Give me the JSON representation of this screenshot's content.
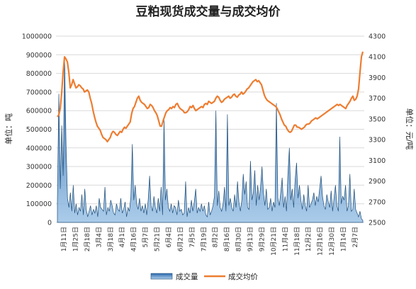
{
  "chart_data": {
    "type": "area+line",
    "title": "豆粕现货成交量与成交均价",
    "y_left": {
      "label": "单位：吨",
      "min": 0,
      "max": 1000000,
      "ticks": [
        "0",
        "100000",
        "200000",
        "300000",
        "400000",
        "500000",
        "600000",
        "700000",
        "800000",
        "900000",
        "1000000"
      ]
    },
    "y_right": {
      "label": "单位：元/吨",
      "min": 2500,
      "max": 4300,
      "ticks": [
        "2500",
        "2700",
        "2900",
        "3100",
        "3300",
        "3500",
        "3700",
        "3900",
        "4100",
        "4300"
      ]
    },
    "x_ticks": [
      "1月11日",
      "1月25日",
      "2月18日",
      "3月4日",
      "3月18日",
      "4月1日",
      "4月16日",
      "5月7日",
      "5月21日",
      "6月4日",
      "6月21日",
      "7月5日",
      "7月19日",
      "8月2日",
      "8月16日",
      "8月30日",
      "9月13日",
      "9月29日",
      "10月21日",
      "11月4日",
      "11月18日",
      "12月2日",
      "12月16日",
      "12月30日",
      "1月14日",
      "2月7日"
    ],
    "grid": true,
    "legend_position": "bottom",
    "series": [
      {
        "name": "成交量",
        "axis": "left",
        "kind": "area",
        "color": "#2e75b6",
        "values": [
          120000,
          690000,
          180000,
          520000,
          250000,
          880000,
          420000,
          130000,
          80000,
          160000,
          60000,
          200000,
          50000,
          100000,
          40000,
          80000,
          60000,
          150000,
          40000,
          180000,
          70000,
          30000,
          60000,
          90000,
          40000,
          70000,
          50000,
          90000,
          30000,
          130000,
          80000,
          70000,
          60000,
          190000,
          40000,
          80000,
          60000,
          120000,
          90000,
          50000,
          40000,
          100000,
          70000,
          60000,
          130000,
          50000,
          70000,
          110000,
          30000,
          80000,
          60000,
          140000,
          420000,
          120000,
          200000,
          100000,
          70000,
          130000,
          60000,
          90000,
          50000,
          100000,
          40000,
          120000,
          250000,
          90000,
          60000,
          140000,
          80000,
          50000,
          130000,
          60000,
          190000,
          40000,
          550000,
          120000,
          180000,
          80000,
          60000,
          100000,
          50000,
          90000,
          80000,
          40000,
          120000,
          60000,
          70000,
          40000,
          50000,
          220000,
          30000,
          80000,
          50000,
          120000,
          60000,
          110000,
          180000,
          50000,
          80000,
          60000,
          100000,
          60000,
          90000,
          40000,
          30000,
          110000,
          40000,
          60000,
          90000,
          140000,
          600000,
          90000,
          170000,
          80000,
          60000,
          100000,
          190000,
          60000,
          580000,
          90000,
          130000,
          80000,
          60000,
          150000,
          80000,
          220000,
          110000,
          60000,
          120000,
          260000,
          150000,
          220000,
          80000,
          70000,
          330000,
          120000,
          160000,
          280000,
          90000,
          200000,
          120000,
          190000,
          300000,
          160000,
          90000,
          180000,
          70000,
          80000,
          130000,
          60000,
          110000,
          80000,
          640000,
          130000,
          90000,
          160000,
          240000,
          80000,
          140000,
          60000,
          260000,
          400000,
          120000,
          180000,
          80000,
          230000,
          320000,
          130000,
          200000,
          120000,
          70000,
          150000,
          90000,
          60000,
          200000,
          80000,
          100000,
          120000,
          160000,
          90000,
          140000,
          110000,
          180000,
          250000,
          140000,
          90000,
          70000,
          150000,
          110000,
          80000,
          170000,
          60000,
          130000,
          200000,
          90000,
          60000,
          460000,
          100000,
          140000,
          120000,
          200000,
          60000,
          90000,
          260000,
          60000,
          70000,
          180000,
          70000,
          50000,
          30000,
          60000,
          20000,
          10000
        ]
      },
      {
        "name": "成交均价",
        "axis": "right",
        "kind": "line",
        "color": "#ed7d31",
        "values": [
          3520,
          3540,
          3600,
          3750,
          3950,
          4100,
          4080,
          4050,
          3950,
          3800,
          3830,
          3880,
          3840,
          3800,
          3810,
          3830,
          3820,
          3800,
          3790,
          3760,
          3770,
          3780,
          3760,
          3700,
          3650,
          3580,
          3520,
          3470,
          3430,
          3410,
          3390,
          3350,
          3320,
          3310,
          3300,
          3280,
          3300,
          3320,
          3360,
          3380,
          3370,
          3350,
          3340,
          3360,
          3380,
          3370,
          3400,
          3420,
          3410,
          3430,
          3450,
          3470,
          3550,
          3600,
          3620,
          3660,
          3700,
          3720,
          3680,
          3660,
          3650,
          3640,
          3620,
          3600,
          3610,
          3640,
          3630,
          3610,
          3580,
          3560,
          3530,
          3480,
          3430,
          3430,
          3480,
          3520,
          3560,
          3580,
          3590,
          3610,
          3600,
          3620,
          3610,
          3640,
          3650,
          3620,
          3600,
          3590,
          3580,
          3560,
          3560,
          3570,
          3590,
          3620,
          3610,
          3630,
          3600,
          3580,
          3590,
          3600,
          3610,
          3620,
          3610,
          3640,
          3650,
          3640,
          3670,
          3660,
          3650,
          3660,
          3670,
          3700,
          3720,
          3710,
          3680,
          3660,
          3670,
          3690,
          3700,
          3710,
          3720,
          3700,
          3710,
          3730,
          3740,
          3720,
          3710,
          3730,
          3740,
          3760,
          3740,
          3750,
          3770,
          3790,
          3800,
          3820,
          3840,
          3860,
          3870,
          3880,
          3860,
          3870,
          3850,
          3830,
          3780,
          3730,
          3700,
          3680,
          3670,
          3660,
          3650,
          3640,
          3630,
          3620,
          3600,
          3570,
          3540,
          3500,
          3470,
          3440,
          3430,
          3400,
          3380,
          3370,
          3380,
          3410,
          3440,
          3440,
          3420,
          3420,
          3410,
          3400,
          3410,
          3420,
          3440,
          3450,
          3450,
          3460,
          3480,
          3490,
          3500,
          3510,
          3500,
          3510,
          3520,
          3530,
          3540,
          3550,
          3560,
          3570,
          3580,
          3590,
          3600,
          3610,
          3620,
          3630,
          3640,
          3630,
          3640,
          3630,
          3620,
          3610,
          3600,
          3630,
          3650,
          3670,
          3700,
          3720,
          3680,
          3690,
          3720,
          3790,
          3950,
          4100,
          4150
        ]
      }
    ]
  }
}
